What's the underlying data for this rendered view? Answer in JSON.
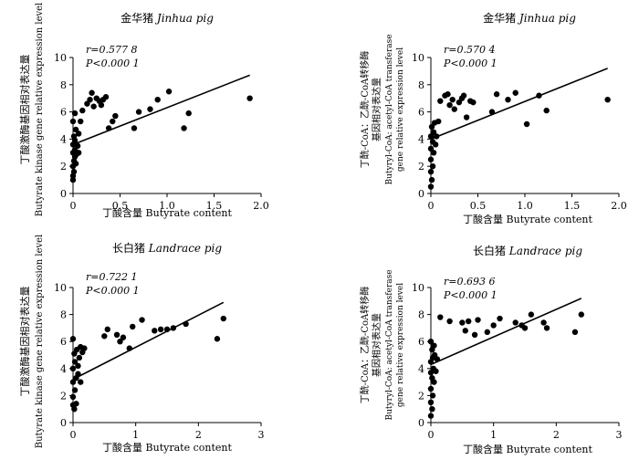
{
  "chart_data": [
    {
      "type": "scatter",
      "title": "金华猪 Jinhua pig",
      "title_cn": "金华猪",
      "title_en": "Jinhua pig",
      "xlabel": "丁酸含量  Butyrate content",
      "ylabel_lines": [
        "丁酸激酶基因相对表达量",
        "Butyrate kinase  gene relative expression level"
      ],
      "xlim": [
        0,
        2.0
      ],
      "ylim": [
        0,
        10
      ],
      "xticks": [
        "0",
        "0.5",
        "1.0",
        "1.5",
        "2.0"
      ],
      "yticks": [
        "0",
        "2",
        "4",
        "6",
        "8",
        "10"
      ],
      "r_text": "r=0.577 8",
      "p_text": "P<0.000 1",
      "fit_line": {
        "x": [
          0,
          1.88
        ],
        "y": [
          3.6,
          8.7
        ]
      },
      "points": [
        [
          0.0,
          1.0
        ],
        [
          0.0,
          1.3
        ],
        [
          0.01,
          1.6
        ],
        [
          0.0,
          2.0
        ],
        [
          0.01,
          2.4
        ],
        [
          0.02,
          2.7
        ],
        [
          0.03,
          2.2
        ],
        [
          0.0,
          3.0
        ],
        [
          0.02,
          3.2
        ],
        [
          0.04,
          2.9
        ],
        [
          0.06,
          3.0
        ],
        [
          0.0,
          3.6
        ],
        [
          0.02,
          3.9
        ],
        [
          0.05,
          3.5
        ],
        [
          0.01,
          4.2
        ],
        [
          0.03,
          4.7
        ],
        [
          0.06,
          4.4
        ],
        [
          0.0,
          5.3
        ],
        [
          0.02,
          5.9
        ],
        [
          0.08,
          5.3
        ],
        [
          0.1,
          6.1
        ],
        [
          0.15,
          6.6
        ],
        [
          0.18,
          6.9
        ],
        [
          0.2,
          7.4
        ],
        [
          0.22,
          6.4
        ],
        [
          0.25,
          7.0
        ],
        [
          0.28,
          6.8
        ],
        [
          0.3,
          6.5
        ],
        [
          0.32,
          6.9
        ],
        [
          0.35,
          7.1
        ],
        [
          0.38,
          4.8
        ],
        [
          0.42,
          5.3
        ],
        [
          0.45,
          5.7
        ],
        [
          0.65,
          4.8
        ],
        [
          0.7,
          6.0
        ],
        [
          0.82,
          6.2
        ],
        [
          0.9,
          6.9
        ],
        [
          1.02,
          7.5
        ],
        [
          1.18,
          4.8
        ],
        [
          1.23,
          5.9
        ],
        [
          1.88,
          7.0
        ]
      ]
    },
    {
      "type": "scatter",
      "title": "金华猪 Jinhua pig",
      "title_cn": "金华猪",
      "title_en": "Jinhua pig",
      "xlabel": "丁酸含量  Butyrate content",
      "ylabel_lines": [
        "丁酰-CoA：乙酰-CoA转移酶",
        "基因相对表达量",
        "Butyryl-CoA: acetyl-CoA transferase",
        "gene relative expression level"
      ],
      "xlim": [
        0,
        2.0
      ],
      "ylim": [
        0,
        10
      ],
      "xticks": [
        "0",
        "0.5",
        "1.0",
        "1.5",
        "2.0"
      ],
      "yticks": [
        "0",
        "2",
        "4",
        "6",
        "8",
        "10"
      ],
      "r_text": "r=0.570 4",
      "p_text": "P<0.000 1",
      "fit_line": {
        "x": [
          0,
          1.88
        ],
        "y": [
          4.0,
          9.2
        ]
      },
      "points": [
        [
          0.0,
          0.5
        ],
        [
          0.01,
          1.0
        ],
        [
          0.0,
          1.6
        ],
        [
          0.02,
          2.0
        ],
        [
          0.0,
          2.5
        ],
        [
          0.03,
          3.0
        ],
        [
          0.0,
          3.3
        ],
        [
          0.02,
          3.8
        ],
        [
          0.05,
          3.6
        ],
        [
          0.0,
          4.2
        ],
        [
          0.03,
          4.5
        ],
        [
          0.06,
          4.2
        ],
        [
          0.01,
          4.9
        ],
        [
          0.04,
          5.2
        ],
        [
          0.08,
          5.3
        ],
        [
          0.1,
          6.8
        ],
        [
          0.15,
          7.2
        ],
        [
          0.18,
          7.3
        ],
        [
          0.2,
          6.5
        ],
        [
          0.23,
          6.9
        ],
        [
          0.25,
          6.2
        ],
        [
          0.3,
          6.7
        ],
        [
          0.33,
          7.0
        ],
        [
          0.35,
          7.2
        ],
        [
          0.38,
          5.6
        ],
        [
          0.42,
          6.8
        ],
        [
          0.45,
          6.7
        ],
        [
          0.65,
          6.0
        ],
        [
          0.7,
          7.3
        ],
        [
          0.82,
          6.9
        ],
        [
          0.9,
          7.4
        ],
        [
          1.02,
          5.1
        ],
        [
          1.15,
          7.2
        ],
        [
          1.23,
          6.1
        ],
        [
          1.88,
          6.9
        ]
      ]
    },
    {
      "type": "scatter",
      "title": "长白猪 Landrace pig",
      "title_cn": "长白猪",
      "title_en": "Landrace pig",
      "xlabel": "丁酸含量  Butyrate content",
      "ylabel_lines": [
        "丁酸激酶基因相对表达量",
        "Butyrate kinase  gene relative expression level"
      ],
      "xlim": [
        0,
        3
      ],
      "ylim": [
        0,
        10
      ],
      "xticks": [
        "0",
        "1",
        "2",
        "3"
      ],
      "yticks": [
        "0",
        "2",
        "4",
        "6",
        "8",
        "10"
      ],
      "r_text": "r=0.722 1",
      "p_text": "P<0.000 1",
      "fit_line": {
        "x": [
          0,
          2.4
        ],
        "y": [
          3.2,
          8.9
        ]
      },
      "points": [
        [
          0.0,
          1.3
        ],
        [
          0.02,
          1.0
        ],
        [
          0.05,
          1.4
        ],
        [
          0.0,
          1.9
        ],
        [
          0.03,
          2.4
        ],
        [
          0.0,
          3.0
        ],
        [
          0.05,
          3.3
        ],
        [
          0.08,
          3.6
        ],
        [
          0.12,
          3.0
        ],
        [
          0.0,
          4.0
        ],
        [
          0.03,
          4.5
        ],
        [
          0.08,
          4.2
        ],
        [
          0.1,
          4.8
        ],
        [
          0.02,
          5.1
        ],
        [
          0.06,
          5.4
        ],
        [
          0.12,
          5.6
        ],
        [
          0.15,
          5.2
        ],
        [
          0.18,
          5.5
        ],
        [
          0.0,
          6.2
        ],
        [
          0.5,
          6.4
        ],
        [
          0.55,
          6.9
        ],
        [
          0.7,
          6.5
        ],
        [
          0.75,
          6.0
        ],
        [
          0.8,
          6.3
        ],
        [
          0.9,
          5.5
        ],
        [
          0.95,
          7.1
        ],
        [
          1.1,
          7.6
        ],
        [
          1.3,
          6.8
        ],
        [
          1.4,
          6.9
        ],
        [
          1.5,
          6.9
        ],
        [
          1.6,
          7.0
        ],
        [
          1.8,
          7.3
        ],
        [
          2.3,
          6.2
        ],
        [
          2.4,
          7.7
        ]
      ]
    },
    {
      "type": "scatter",
      "title": "长白猪 Landrace pig",
      "title_cn": "长白猪",
      "title_en": "Landrace pig",
      "xlabel": "丁酸含量  Butyrate content",
      "ylabel_lines": [
        "丁酰-CoA：乙酰-CoA转移酶",
        "基因相对表达量",
        "Butyryl-CoA: acetyl-CoA transferase",
        "gene relative expression level"
      ],
      "xlim": [
        0,
        3
      ],
      "ylim": [
        0,
        10
      ],
      "xticks": [
        "0",
        "1",
        "2",
        "3"
      ],
      "yticks": [
        "0",
        "2",
        "4",
        "6",
        "8",
        "10"
      ],
      "r_text": "r=0.693 6",
      "p_text": "P<0.000 1",
      "fit_line": {
        "x": [
          0,
          2.4
        ],
        "y": [
          4.3,
          9.2
        ]
      },
      "points": [
        [
          0.0,
          0.5
        ],
        [
          0.02,
          1.0
        ],
        [
          0.0,
          1.5
        ],
        [
          0.03,
          2.0
        ],
        [
          0.0,
          2.5
        ],
        [
          0.05,
          3.0
        ],
        [
          0.02,
          3.3
        ],
        [
          0.0,
          3.7
        ],
        [
          0.04,
          4.0
        ],
        [
          0.08,
          3.8
        ],
        [
          0.0,
          4.5
        ],
        [
          0.03,
          4.8
        ],
        [
          0.06,
          5.0
        ],
        [
          0.1,
          4.7
        ],
        [
          0.02,
          5.4
        ],
        [
          0.05,
          5.7
        ],
        [
          0.0,
          6.0
        ],
        [
          0.15,
          7.8
        ],
        [
          0.3,
          7.5
        ],
        [
          0.5,
          7.4
        ],
        [
          0.55,
          6.8
        ],
        [
          0.6,
          7.5
        ],
        [
          0.7,
          6.5
        ],
        [
          0.75,
          7.6
        ],
        [
          0.9,
          6.7
        ],
        [
          1.0,
          7.2
        ],
        [
          1.1,
          7.7
        ],
        [
          1.35,
          7.4
        ],
        [
          1.45,
          7.2
        ],
        [
          1.5,
          7.0
        ],
        [
          1.6,
          8.0
        ],
        [
          1.8,
          7.4
        ],
        [
          1.85,
          7.0
        ],
        [
          2.3,
          6.7
        ],
        [
          2.4,
          8.0
        ]
      ]
    }
  ]
}
